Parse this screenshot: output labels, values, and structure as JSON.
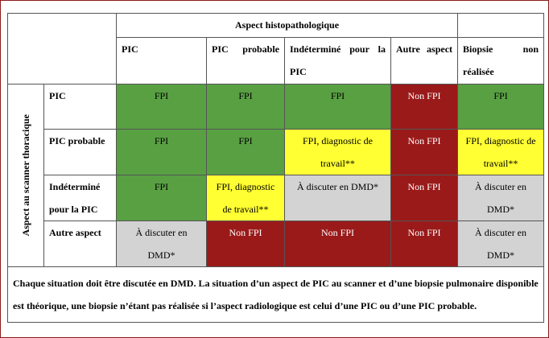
{
  "header": {
    "title": "Aspect histopathologique",
    "columns": [
      "PIC",
      "PIC probable",
      "Indéterminé pour la PIC",
      "Autre aspect",
      "Biopsie non réalisée"
    ]
  },
  "row_axis": "Aspect au scanner thoracique",
  "rows": [
    {
      "label": "PIC",
      "cells": [
        {
          "text": "FPI",
          "color": "#59a043"
        },
        {
          "text": "FPI",
          "color": "#59a043"
        },
        {
          "text": "FPI",
          "color": "#59a043"
        },
        {
          "text": "Non FPI",
          "color": "#9a1a1a"
        },
        {
          "text": "FPI",
          "color": "#59a043"
        }
      ]
    },
    {
      "label": "PIC probable",
      "cells": [
        {
          "text": "FPI",
          "color": "#59a043"
        },
        {
          "text": "FPI",
          "color": "#59a043"
        },
        {
          "text": "FPI, diagnostic de travail**",
          "color": "#ffff33"
        },
        {
          "text": "Non FPI",
          "color": "#9a1a1a"
        },
        {
          "text": "FPI, diagnostic de travail**",
          "color": "#ffff33"
        }
      ]
    },
    {
      "label": "Indéterminé pour la PIC",
      "cells": [
        {
          "text": "FPI",
          "color": "#59a043"
        },
        {
          "text": "FPI, diagnostic de travail**",
          "color": "#ffff33"
        },
        {
          "text": "À discuter en DMD*",
          "color": "#d3d3d3"
        },
        {
          "text": "Non FPI",
          "color": "#9a1a1a"
        },
        {
          "text": "À discuter en DMD*",
          "color": "#d3d3d3"
        }
      ]
    },
    {
      "label": "Autre aspect",
      "cells": [
        {
          "text": "À discuter en DMD*",
          "color": "#d3d3d3"
        },
        {
          "text": "Non FPI",
          "color": "#9a1a1a"
        },
        {
          "text": "Non FPI",
          "color": "#9a1a1a"
        },
        {
          "text": "Non FPI",
          "color": "#9a1a1a"
        },
        {
          "text": "À discuter en DMD*",
          "color": "#d3d3d3"
        }
      ]
    }
  ],
  "footnote": "Chaque situation doit être discutée en DMD. La situation d’un aspect de PIC au scanner et d’une biopsie pulmonaire disponible est théorique, une biopsie n’étant pas réalisée si l’aspect radiologique est celui d’une PIC ou d’une PIC probable."
}
